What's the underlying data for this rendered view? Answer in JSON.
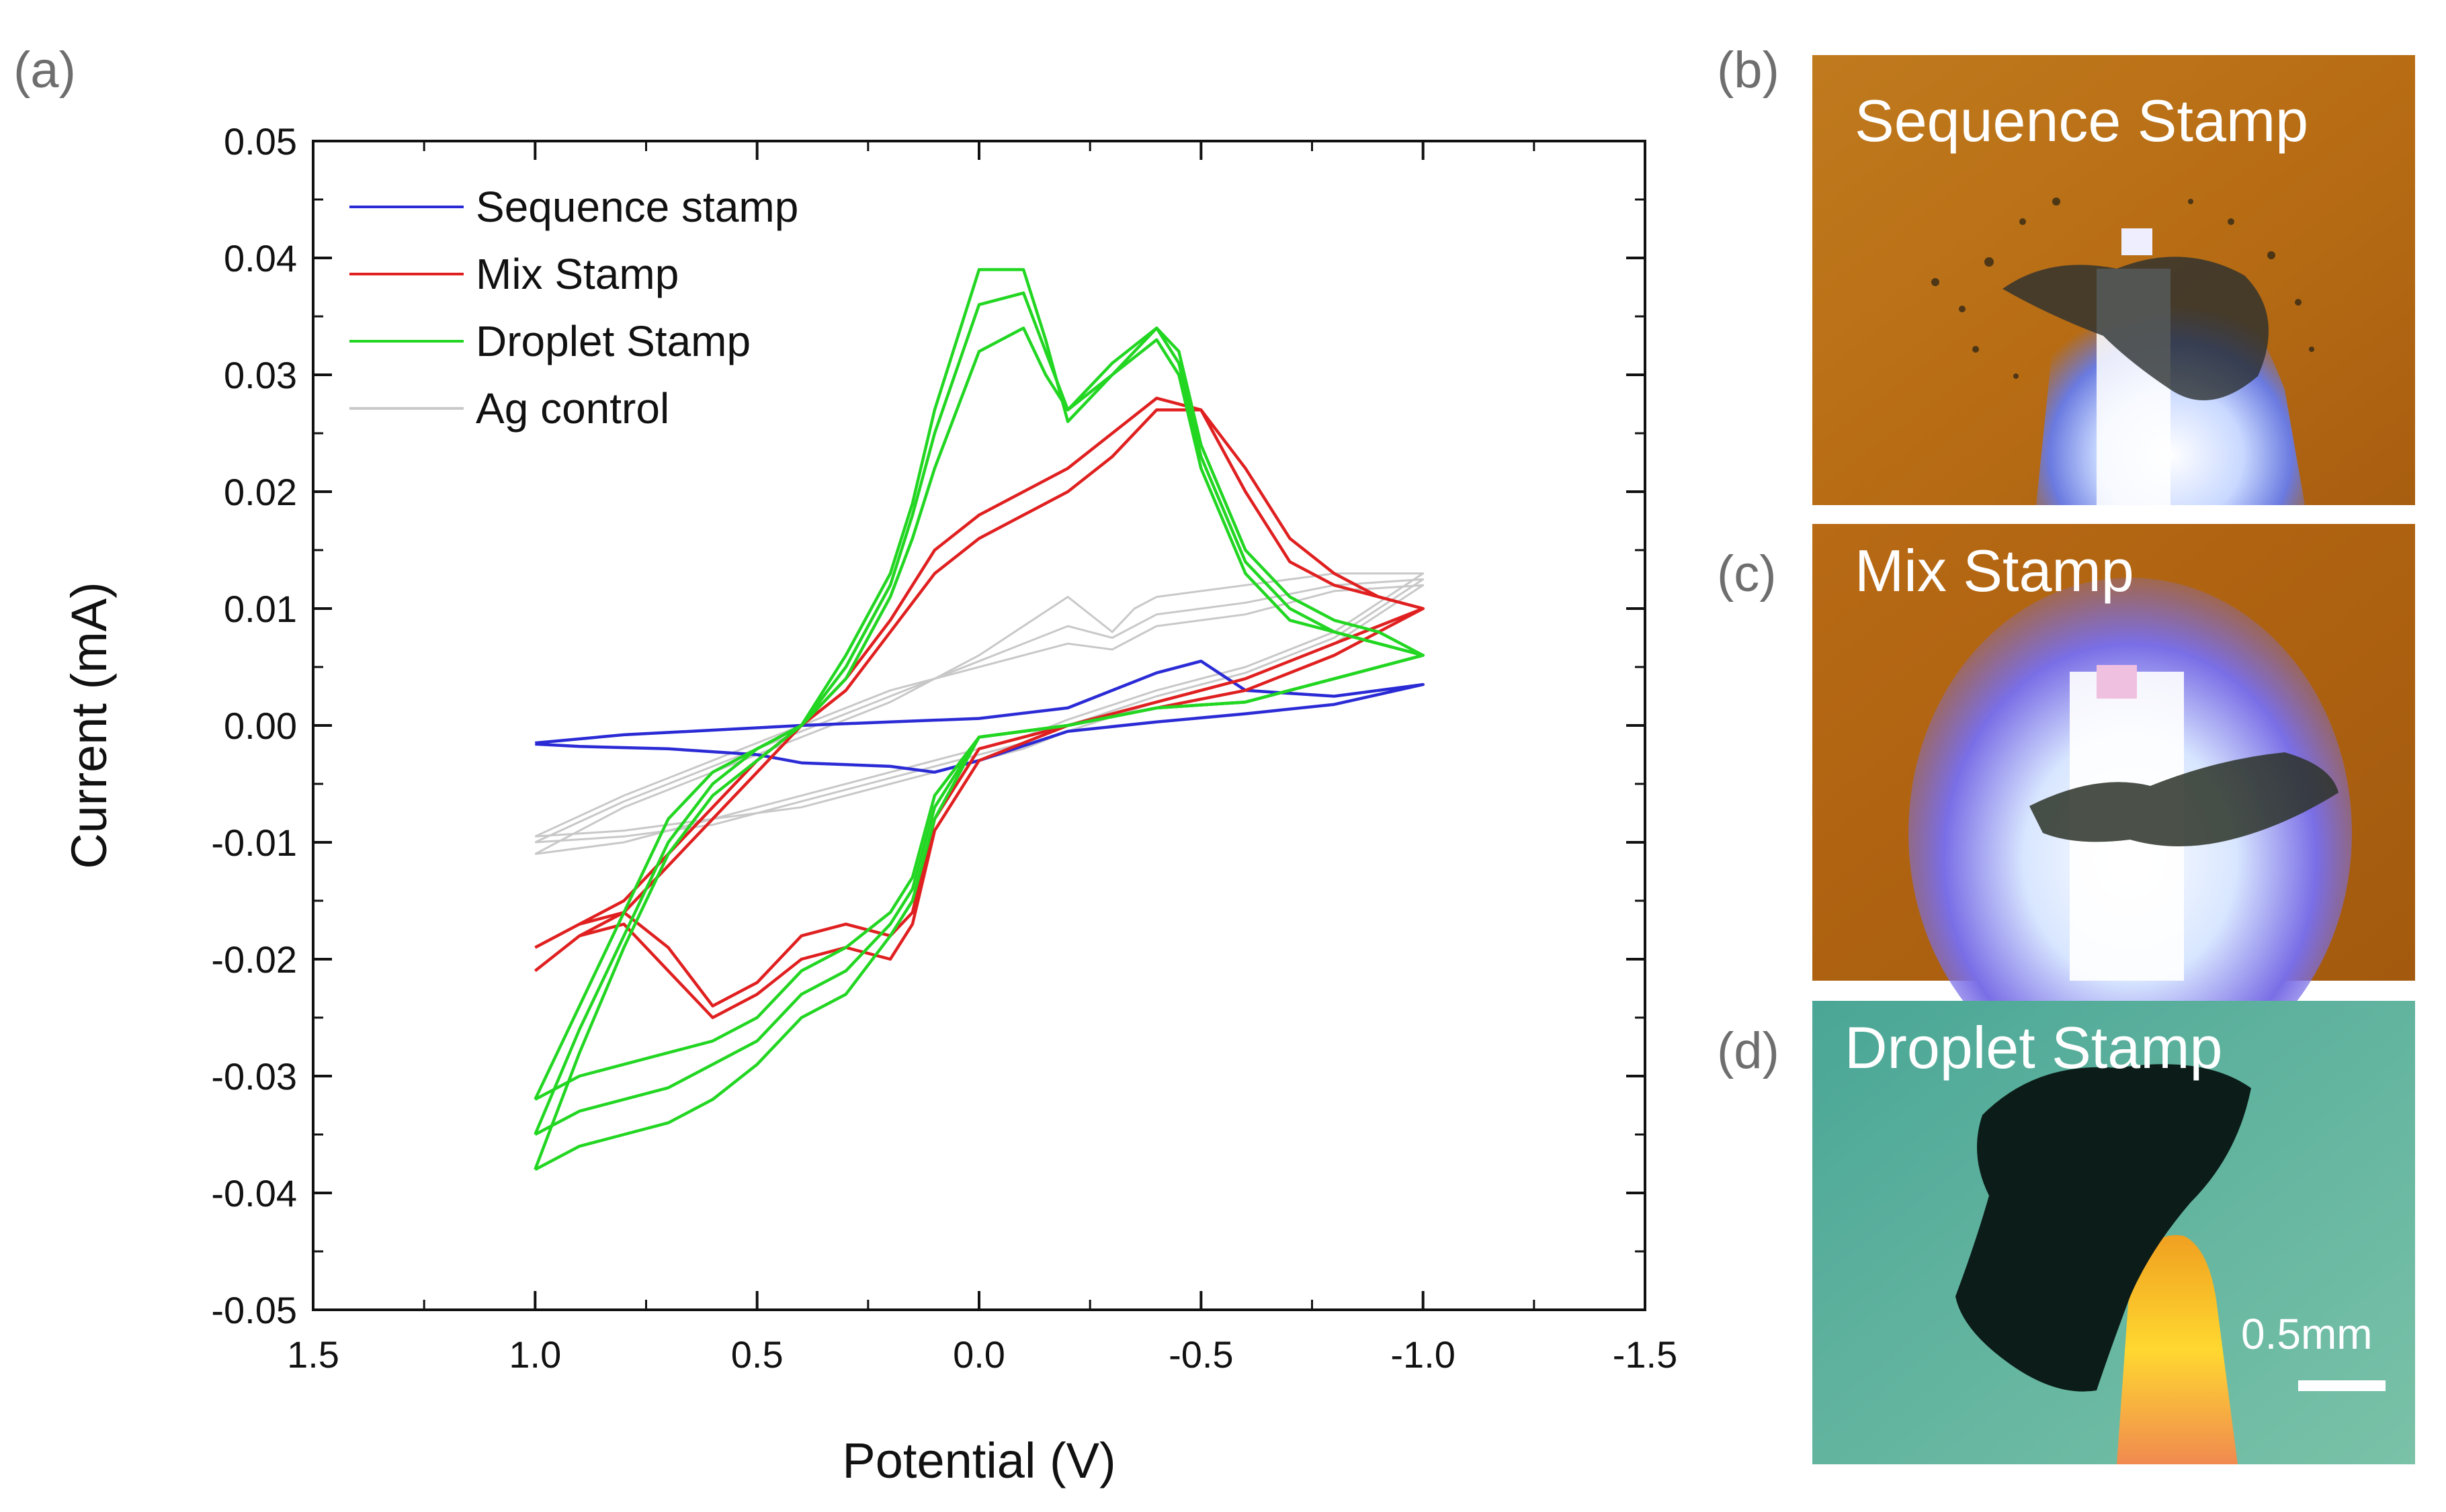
{
  "chart_data": {
    "type": "line",
    "panel_label": "(a)",
    "xlabel": "Potential (V)",
    "ylabel": "Current (mA)",
    "xlim": [
      1.5,
      -1.5
    ],
    "ylim": [
      -0.05,
      0.05
    ],
    "xticks": [
      "1.5",
      "1.0",
      "0.5",
      "0.0",
      "-0.5",
      "-1.0",
      "-1.5"
    ],
    "yticks": [
      "0.05",
      "0.04",
      "0.03",
      "0.02",
      "0.01",
      "0.00",
      "-0.01",
      "-0.02",
      "-0.03",
      "-0.04",
      "-0.05"
    ],
    "legend_position": "top-left",
    "colors": {
      "sequence": "#2b2bd6",
      "mix": "#e02020",
      "droplet": "#22d622",
      "ag": "#c8c8c8"
    },
    "series": [
      {
        "name": "Sequence stamp",
        "color": "#2b2bd6",
        "cycles": [
          {
            "x": [
              1.0,
              0.8,
              0.6,
              0.4,
              0.2,
              0.0,
              -0.2,
              -0.4,
              -0.5,
              -0.6,
              -0.8,
              -1.0,
              -0.8,
              -0.6,
              -0.4,
              -0.2,
              0.0,
              0.1,
              0.2,
              0.4,
              0.5,
              0.7,
              0.9,
              1.0
            ],
            "y": [
              -0.0015,
              -0.0008,
              -0.0004,
              0.0,
              0.0003,
              0.0006,
              0.0015,
              0.0045,
              0.0055,
              0.003,
              0.0025,
              0.0035,
              0.0018,
              0.001,
              0.0003,
              -0.0005,
              -0.003,
              -0.004,
              -0.0035,
              -0.0032,
              -0.0025,
              -0.002,
              -0.0018,
              -0.0016
            ]
          }
        ]
      },
      {
        "name": "Mix Stamp",
        "color": "#e02020",
        "cycles": [
          {
            "x": [
              1.0,
              0.9,
              0.8,
              0.7,
              0.6,
              0.5,
              0.4,
              0.3,
              0.2,
              0.1,
              0.0,
              -0.1,
              -0.2,
              -0.3,
              -0.4,
              -0.5,
              -0.6,
              -0.7,
              -0.8,
              -0.9,
              -1.0,
              -0.8,
              -0.6,
              -0.4,
              -0.2,
              0.0,
              0.1,
              0.15,
              0.2,
              0.3,
              0.4,
              0.5,
              0.6,
              0.7,
              0.8,
              0.9,
              1.0
            ],
            "y": [
              -0.019,
              -0.017,
              -0.015,
              -0.011,
              -0.007,
              -0.003,
              0.0,
              0.003,
              0.008,
              0.013,
              0.016,
              0.018,
              0.02,
              0.023,
              0.027,
              0.027,
              0.02,
              0.014,
              0.012,
              0.011,
              0.01,
              0.006,
              0.003,
              0.0015,
              0.0,
              -0.002,
              -0.008,
              -0.016,
              -0.018,
              -0.017,
              -0.018,
              -0.022,
              -0.024,
              -0.019,
              -0.016,
              -0.017,
              -0.019
            ]
          },
          {
            "x": [
              1.0,
              0.9,
              0.8,
              0.7,
              0.6,
              0.5,
              0.4,
              0.3,
              0.2,
              0.1,
              0.0,
              -0.1,
              -0.2,
              -0.3,
              -0.4,
              -0.5,
              -0.6,
              -0.7,
              -0.8,
              -0.9,
              -1.0,
              -0.8,
              -0.6,
              -0.4,
              -0.2,
              0.0,
              0.1,
              0.15,
              0.2,
              0.3,
              0.4,
              0.5,
              0.6,
              0.7,
              0.8,
              0.9,
              1.0
            ],
            "y": [
              -0.021,
              -0.018,
              -0.016,
              -0.012,
              -0.008,
              -0.004,
              0.0,
              0.004,
              0.009,
              0.015,
              0.018,
              0.02,
              0.022,
              0.025,
              0.028,
              0.027,
              0.022,
              0.016,
              0.013,
              0.011,
              0.01,
              0.007,
              0.004,
              0.002,
              0.0,
              -0.003,
              -0.009,
              -0.017,
              -0.02,
              -0.019,
              -0.02,
              -0.023,
              -0.025,
              -0.021,
              -0.017,
              -0.018,
              -0.021
            ]
          }
        ]
      },
      {
        "name": "Droplet Stamp",
        "color": "#22d622",
        "cycles": [
          {
            "x": [
              1.0,
              0.9,
              0.8,
              0.7,
              0.6,
              0.5,
              0.4,
              0.3,
              0.2,
              0.15,
              0.1,
              0.0,
              -0.1,
              -0.15,
              -0.2,
              -0.3,
              -0.4,
              -0.45,
              -0.5,
              -0.6,
              -0.7,
              -0.8,
              -0.9,
              -1.0,
              -0.8,
              -0.6,
              -0.4,
              -0.2,
              0.0,
              0.1,
              0.15,
              0.2,
              0.3,
              0.4,
              0.5,
              0.6,
              0.7,
              0.8,
              0.9,
              1.0
            ],
            "y": [
              -0.032,
              -0.024,
              -0.016,
              -0.008,
              -0.004,
              -0.002,
              0.0,
              0.004,
              0.011,
              0.016,
              0.022,
              0.032,
              0.034,
              0.03,
              0.027,
              0.03,
              0.033,
              0.03,
              0.022,
              0.013,
              0.009,
              0.008,
              0.007,
              0.006,
              0.004,
              0.002,
              0.0015,
              0.0,
              -0.001,
              -0.006,
              -0.013,
              -0.016,
              -0.019,
              -0.021,
              -0.025,
              -0.027,
              -0.028,
              -0.029,
              -0.03,
              -0.032
            ]
          },
          {
            "x": [
              1.0,
              0.9,
              0.8,
              0.7,
              0.6,
              0.5,
              0.4,
              0.3,
              0.2,
              0.15,
              0.1,
              0.0,
              -0.1,
              -0.15,
              -0.2,
              -0.3,
              -0.4,
              -0.45,
              -0.5,
              -0.6,
              -0.7,
              -0.8,
              -0.9,
              -1.0,
              -0.8,
              -0.6,
              -0.4,
              -0.2,
              0.0,
              0.1,
              0.15,
              0.2,
              0.3,
              0.4,
              0.5,
              0.6,
              0.7,
              0.8,
              0.9,
              1.0
            ],
            "y": [
              -0.035,
              -0.026,
              -0.018,
              -0.01,
              -0.005,
              -0.002,
              0.0,
              0.005,
              0.012,
              0.018,
              0.025,
              0.036,
              0.037,
              0.032,
              0.027,
              0.031,
              0.034,
              0.031,
              0.023,
              0.014,
              0.01,
              0.008,
              0.007,
              0.006,
              0.004,
              0.002,
              0.0015,
              0.0,
              -0.001,
              -0.007,
              -0.014,
              -0.017,
              -0.021,
              -0.023,
              -0.027,
              -0.029,
              -0.031,
              -0.032,
              -0.033,
              -0.035
            ]
          },
          {
            "x": [
              1.0,
              0.9,
              0.8,
              0.7,
              0.6,
              0.5,
              0.4,
              0.3,
              0.2,
              0.15,
              0.1,
              0.0,
              -0.1,
              -0.15,
              -0.2,
              -0.3,
              -0.4,
              -0.45,
              -0.5,
              -0.6,
              -0.7,
              -0.8,
              -0.9,
              -1.0,
              -0.8,
              -0.6,
              -0.4,
              -0.2,
              0.0,
              0.1,
              0.15,
              0.2,
              0.3,
              0.4,
              0.5,
              0.6,
              0.7,
              0.8,
              0.9,
              1.0
            ],
            "y": [
              -0.038,
              -0.028,
              -0.019,
              -0.011,
              -0.006,
              -0.003,
              0.0,
              0.006,
              0.013,
              0.019,
              0.027,
              0.039,
              0.039,
              0.033,
              0.026,
              0.03,
              0.034,
              0.032,
              0.024,
              0.015,
              0.011,
              0.009,
              0.008,
              0.006,
              0.004,
              0.002,
              0.0015,
              0.0,
              -0.001,
              -0.008,
              -0.015,
              -0.018,
              -0.023,
              -0.025,
              -0.029,
              -0.032,
              -0.034,
              -0.035,
              -0.036,
              -0.038
            ]
          }
        ]
      },
      {
        "name": "Ag control",
        "color": "#c8c8c8",
        "cycles": [
          {
            "x": [
              1.0,
              0.8,
              0.6,
              0.4,
              0.2,
              0.0,
              -0.2,
              -0.3,
              -0.35,
              -0.4,
              -0.6,
              -0.8,
              -1.0,
              -0.8,
              -0.6,
              -0.4,
              -0.2,
              -0.1,
              0.0,
              0.2,
              0.4,
              0.6,
              0.8,
              1.0
            ],
            "y": [
              -0.011,
              -0.007,
              -0.004,
              -0.001,
              0.002,
              0.006,
              0.011,
              0.008,
              0.01,
              0.011,
              0.012,
              0.013,
              0.013,
              0.008,
              0.005,
              0.003,
              0.0005,
              -0.001,
              -0.002,
              -0.004,
              -0.006,
              -0.008,
              -0.01,
              -0.011
            ]
          },
          {
            "x": [
              1.0,
              0.8,
              0.6,
              0.4,
              0.2,
              0.0,
              -0.2,
              -0.3,
              -0.35,
              -0.4,
              -0.6,
              -0.8,
              -1.0,
              -0.8,
              -0.6,
              -0.4,
              -0.2,
              -0.1,
              0.0,
              0.2,
              0.4,
              0.6,
              0.8,
              1.0
            ],
            "y": [
              -0.01,
              -0.0065,
              -0.0035,
              -0.0005,
              0.0025,
              0.0055,
              0.0085,
              0.0075,
              0.0085,
              0.0095,
              0.0105,
              0.012,
              0.0125,
              0.0075,
              0.0045,
              0.0025,
              0.0,
              -0.0015,
              -0.0025,
              -0.0045,
              -0.0065,
              -0.0085,
              -0.0095,
              -0.01
            ]
          },
          {
            "x": [
              1.0,
              0.8,
              0.6,
              0.4,
              0.2,
              0.0,
              -0.2,
              -0.3,
              -0.35,
              -0.4,
              -0.6,
              -0.8,
              -1.0,
              -0.8,
              -0.6,
              -0.4,
              -0.2,
              -0.1,
              0.0,
              0.2,
              0.4,
              0.6,
              0.8,
              1.0
            ],
            "y": [
              -0.0095,
              -0.006,
              -0.003,
              0.0,
              0.003,
              0.005,
              0.007,
              0.0065,
              0.0075,
              0.0085,
              0.0095,
              0.0115,
              0.012,
              0.007,
              0.004,
              0.002,
              -0.0005,
              -0.002,
              -0.003,
              -0.005,
              -0.007,
              -0.008,
              -0.009,
              -0.0095
            ]
          }
        ]
      }
    ]
  },
  "photos": [
    {
      "label": "(b)",
      "title": "Sequence Stamp"
    },
    {
      "label": "(c)",
      "title": "Mix Stamp"
    },
    {
      "label": "(d)",
      "title": "Droplet Stamp",
      "scale_bar_label": "0.5mm"
    }
  ]
}
